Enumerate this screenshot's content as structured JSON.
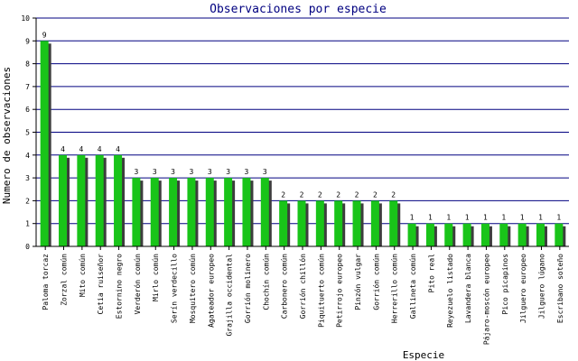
{
  "chart_data": {
    "type": "bar",
    "title": "Observaciones por especie",
    "xlabel": "Especie",
    "ylabel": "Numero de observaciones",
    "ylim": [
      0,
      10
    ],
    "grid": true,
    "categories": [
      "Paloma torcaz",
      "Zorzal común",
      "Mito común",
      "Cetia ruiseñor",
      "Estornino negro",
      "Verderón común",
      "Mirlo común",
      "Serín verdecillo",
      "Mosquitero común",
      "Agateador europeo",
      "Grajilla occidental",
      "Gorrión molinero",
      "Chochín común",
      "Carbonero común",
      "Gorrión chillón",
      "Piquituerto común",
      "Petirrojo europeo",
      "Pinzón vulgar",
      "Gorrión común",
      "Herrerillo común",
      "Gallineta común",
      "Pito real",
      "Reyezuelo listado",
      "Lavandera blanca",
      "Pájaro-moscón europeo",
      "Pico picapinos",
      "Jilguero europeo",
      "Jilguero lúgano",
      "Escribano soteño"
    ],
    "values": [
      9,
      4,
      4,
      4,
      4,
      3,
      3,
      3,
      3,
      3,
      3,
      3,
      3,
      2,
      2,
      2,
      2,
      2,
      2,
      2,
      1,
      1,
      1,
      1,
      1,
      1,
      1,
      1,
      1
    ],
    "colors": {
      "bar": "#19c419",
      "shadow": "#3d3d3d",
      "grid": "#000080",
      "axis": "#000000",
      "title": "#000080",
      "text": "#000000"
    }
  }
}
